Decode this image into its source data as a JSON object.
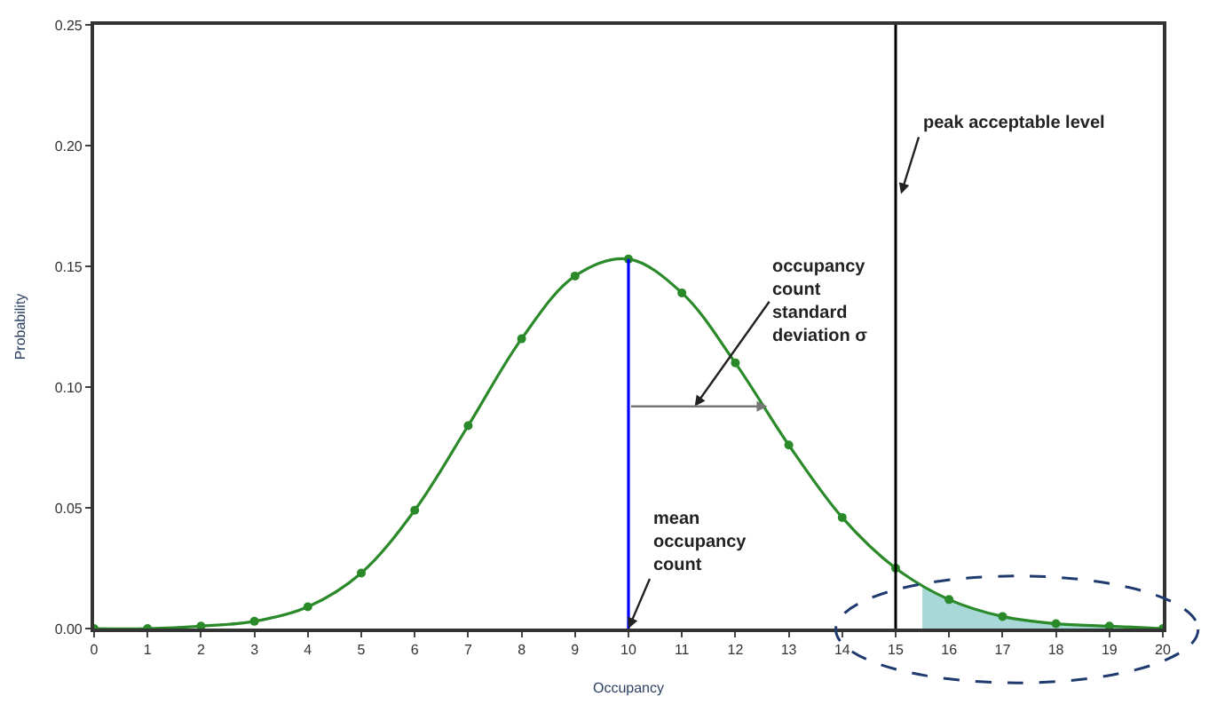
{
  "chart_data": {
    "type": "line",
    "xlabel": "Occupancy",
    "ylabel": "Probability",
    "x": [
      0,
      1,
      2,
      3,
      4,
      5,
      6,
      7,
      8,
      9,
      10,
      11,
      12,
      13,
      14,
      15,
      16,
      17,
      18,
      19,
      20
    ],
    "series": [
      {
        "type": "area",
        "color": "#a8d8d8",
        "x": [
          15.5,
          16,
          17,
          18,
          19,
          20
        ],
        "values": [
          0.018,
          0.012,
          0.005,
          0.002,
          0.001,
          0.0
        ],
        "marker": "none"
      },
      {
        "color": "#2a8a2a",
        "values": [
          0.0,
          0.0,
          0.001,
          0.003,
          0.009,
          0.023,
          0.049,
          0.084,
          0.12,
          0.146,
          0.153,
          0.139,
          0.11,
          0.076,
          0.046,
          0.025,
          0.012,
          0.005,
          0.002,
          0.001,
          0.0
        ],
        "marker": "circle"
      },
      {
        "color": "#0000ff",
        "x": [
          10,
          10
        ],
        "values": [
          0.0,
          0.153
        ],
        "marker": "none"
      }
    ],
    "xlim": [
      0,
      20
    ],
    "xticks": [
      0,
      1,
      2,
      3,
      4,
      5,
      6,
      7,
      8,
      9,
      10,
      11,
      12,
      13,
      14,
      15,
      16,
      17,
      18,
      19,
      20
    ],
    "ylim": [
      0,
      0.25
    ],
    "yticks": [
      {
        "value": 0,
        "label": "0.00"
      },
      {
        "value": 0.05,
        "label": "0.05"
      },
      {
        "value": 0.1,
        "label": "0.10"
      },
      {
        "value": 0.15,
        "label": "0.15"
      },
      {
        "value": 0.2,
        "label": "0.20"
      },
      {
        "value": 0.25,
        "label": "0.25"
      }
    ],
    "ref_lines": [
      {
        "axis": "x",
        "value": 15,
        "color": "#000000"
      }
    ],
    "annotations": [
      {
        "text": "mean\noccupancy\ncount",
        "x": 10,
        "y": 0
      },
      "occupancy\ncount\nstandard\ndeviation σ",
      {
        "text": "peak acceptable level",
        "x": 15.1,
        "y": 0.18
      }
    ]
  }
}
